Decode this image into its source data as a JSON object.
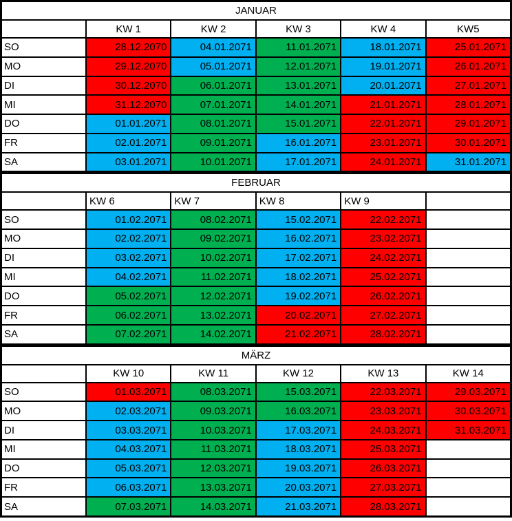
{
  "palette": {
    "red": "#FF0000",
    "blue": "#00B0F0",
    "green": "#00B050",
    "empty": "#FFFFFF"
  },
  "months": [
    {
      "title": "JANUAR",
      "kw_label_align": "center",
      "week_headers": [
        "KW 1",
        "KW 2",
        "KW 3",
        "KW 4",
        "KW5"
      ],
      "rows": [
        {
          "day": "SO",
          "cells": [
            {
              "date": "28.12.2070",
              "color": "red"
            },
            {
              "date": "04.01.2071",
              "color": "blue"
            },
            {
              "date": "11.01.2071",
              "color": "green"
            },
            {
              "date": "18.01.2071",
              "color": "blue"
            },
            {
              "date": "25.01.2071",
              "color": "red"
            }
          ]
        },
        {
          "day": "MO",
          "cells": [
            {
              "date": "29.12.2070",
              "color": "red"
            },
            {
              "date": "05.01.2071",
              "color": "blue"
            },
            {
              "date": "12.01.2071",
              "color": "green"
            },
            {
              "date": "19.01.2071",
              "color": "blue"
            },
            {
              "date": "26.01.2071",
              "color": "red"
            }
          ]
        },
        {
          "day": "DI",
          "cells": [
            {
              "date": "30.12.2070",
              "color": "red"
            },
            {
              "date": "06.01.2071",
              "color": "green"
            },
            {
              "date": "13.01.2071",
              "color": "green"
            },
            {
              "date": "20.01.2071",
              "color": "blue"
            },
            {
              "date": "27.01.2071",
              "color": "red"
            }
          ]
        },
        {
          "day": "MI",
          "cells": [
            {
              "date": "31.12.2070",
              "color": "red"
            },
            {
              "date": "07.01.2071",
              "color": "green"
            },
            {
              "date": "14.01.2071",
              "color": "green"
            },
            {
              "date": "21.01.2071",
              "color": "red"
            },
            {
              "date": "28.01.2071",
              "color": "red"
            }
          ]
        },
        {
          "day": "DO",
          "cells": [
            {
              "date": "01.01.2071",
              "color": "blue"
            },
            {
              "date": "08.01.2071",
              "color": "green"
            },
            {
              "date": "15.01.2071",
              "color": "green"
            },
            {
              "date": "22.01.2071",
              "color": "red"
            },
            {
              "date": "29.01.2071",
              "color": "red"
            }
          ]
        },
        {
          "day": "FR",
          "cells": [
            {
              "date": "02.01.2071",
              "color": "blue"
            },
            {
              "date": "09.01.2071",
              "color": "green"
            },
            {
              "date": "16.01.2071",
              "color": "blue"
            },
            {
              "date": "23.01.2071",
              "color": "red"
            },
            {
              "date": "30.01.2071",
              "color": "red"
            }
          ]
        },
        {
          "day": "SA",
          "cells": [
            {
              "date": "03.01.2071",
              "color": "blue"
            },
            {
              "date": "10.01.2071",
              "color": "green"
            },
            {
              "date": "17.01.2071",
              "color": "blue"
            },
            {
              "date": "24.01.2071",
              "color": "red"
            },
            {
              "date": "31.01.2071",
              "color": "blue"
            }
          ]
        }
      ]
    },
    {
      "title": "FEBRUAR",
      "kw_label_align": "left",
      "week_headers": [
        "KW 6",
        "KW 7",
        "KW 8",
        "KW 9",
        ""
      ],
      "rows": [
        {
          "day": "SO",
          "cells": [
            {
              "date": "01.02.2071",
              "color": "blue"
            },
            {
              "date": "08.02.2071",
              "color": "green"
            },
            {
              "date": "15.02.2071",
              "color": "blue"
            },
            {
              "date": "22.02.2071",
              "color": "red"
            },
            {
              "date": "",
              "color": "empty"
            }
          ]
        },
        {
          "day": "MO",
          "cells": [
            {
              "date": "02.02.2071",
              "color": "blue"
            },
            {
              "date": "09.02.2071",
              "color": "green"
            },
            {
              "date": "16.02.2071",
              "color": "blue"
            },
            {
              "date": "23.02.2071",
              "color": "red"
            },
            {
              "date": "",
              "color": "empty"
            }
          ]
        },
        {
          "day": "DI",
          "cells": [
            {
              "date": "03.02.2071",
              "color": "blue"
            },
            {
              "date": "10.02.2071",
              "color": "green"
            },
            {
              "date": "17.02.2071",
              "color": "blue"
            },
            {
              "date": "24.02.2071",
              "color": "red"
            },
            {
              "date": "",
              "color": "empty"
            }
          ]
        },
        {
          "day": "MI",
          "cells": [
            {
              "date": "04.02.2071",
              "color": "blue"
            },
            {
              "date": "11.02.2071",
              "color": "green"
            },
            {
              "date": "18.02.2071",
              "color": "blue"
            },
            {
              "date": "25.02.2071",
              "color": "red"
            },
            {
              "date": "",
              "color": "empty"
            }
          ]
        },
        {
          "day": "DO",
          "cells": [
            {
              "date": "05.02.2071",
              "color": "green"
            },
            {
              "date": "12.02.2071",
              "color": "green"
            },
            {
              "date": "19.02.2071",
              "color": "blue"
            },
            {
              "date": "26.02.2071",
              "color": "red"
            },
            {
              "date": "",
              "color": "empty"
            }
          ]
        },
        {
          "day": "FR",
          "cells": [
            {
              "date": "06.02.2071",
              "color": "green"
            },
            {
              "date": "13.02.2071",
              "color": "green"
            },
            {
              "date": "20.02.2071",
              "color": "red"
            },
            {
              "date": "27.02.2071",
              "color": "red"
            },
            {
              "date": "",
              "color": "empty"
            }
          ]
        },
        {
          "day": "SA",
          "cells": [
            {
              "date": "07.02.2071",
              "color": "green"
            },
            {
              "date": "14.02.2071",
              "color": "green"
            },
            {
              "date": "21.02.2071",
              "color": "red"
            },
            {
              "date": "28.02.2071",
              "color": "red"
            },
            {
              "date": "",
              "color": "empty"
            }
          ]
        }
      ]
    },
    {
      "title": "MÄRZ",
      "kw_label_align": "center",
      "week_headers": [
        "KW 10",
        "KW 11",
        "KW 12",
        "KW 13",
        "KW 14"
      ],
      "rows": [
        {
          "day": "SO",
          "cells": [
            {
              "date": "01.03.2071",
              "color": "red"
            },
            {
              "date": "08.03.2071",
              "color": "green"
            },
            {
              "date": "15.03.2071",
              "color": "green"
            },
            {
              "date": "22.03.2071",
              "color": "red"
            },
            {
              "date": "29.03.2071",
              "color": "red"
            }
          ]
        },
        {
          "day": "MO",
          "cells": [
            {
              "date": "02.03.2071",
              "color": "blue"
            },
            {
              "date": "09.03.2071",
              "color": "green"
            },
            {
              "date": "16.03.2071",
              "color": "green"
            },
            {
              "date": "23.03.2071",
              "color": "red"
            },
            {
              "date": "30.03.2071",
              "color": "red"
            }
          ]
        },
        {
          "day": "DI",
          "cells": [
            {
              "date": "03.03.2071",
              "color": "blue"
            },
            {
              "date": "10.03.2071",
              "color": "green"
            },
            {
              "date": "17.03.2071",
              "color": "blue"
            },
            {
              "date": "24.03.2071",
              "color": "red"
            },
            {
              "date": "31.03.2071",
              "color": "red"
            }
          ]
        },
        {
          "day": "MI",
          "cells": [
            {
              "date": "04.03.2071",
              "color": "blue"
            },
            {
              "date": "11.03.2071",
              "color": "green"
            },
            {
              "date": "18.03.2071",
              "color": "blue"
            },
            {
              "date": "25.03.2071",
              "color": "red"
            },
            {
              "date": "",
              "color": "empty"
            }
          ]
        },
        {
          "day": "DO",
          "cells": [
            {
              "date": "05.03.2071",
              "color": "blue"
            },
            {
              "date": "12.03.2071",
              "color": "green"
            },
            {
              "date": "19.03.2071",
              "color": "blue"
            },
            {
              "date": "26.03.2071",
              "color": "red"
            },
            {
              "date": "",
              "color": "empty"
            }
          ]
        },
        {
          "day": "FR",
          "cells": [
            {
              "date": "06.03.2071",
              "color": "blue"
            },
            {
              "date": "13.03.2071",
              "color": "green"
            },
            {
              "date": "20.03.2071",
              "color": "blue"
            },
            {
              "date": "27.03.2071",
              "color": "red"
            },
            {
              "date": "",
              "color": "empty"
            }
          ]
        },
        {
          "day": "SA",
          "cells": [
            {
              "date": "07.03.2071",
              "color": "green"
            },
            {
              "date": "14.03.2071",
              "color": "green"
            },
            {
              "date": "21.03.2071",
              "color": "blue"
            },
            {
              "date": "28.03.2071",
              "color": "red"
            },
            {
              "date": "",
              "color": "empty"
            }
          ]
        }
      ]
    }
  ]
}
